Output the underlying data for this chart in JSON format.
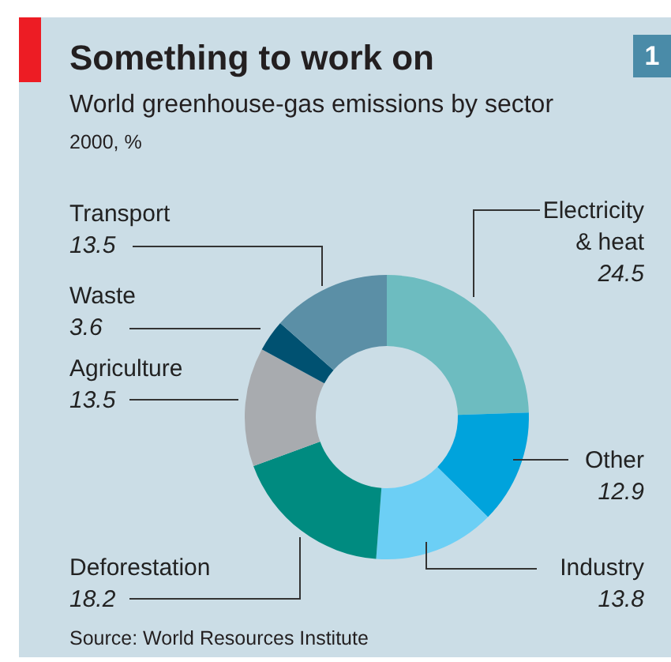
{
  "chart_data": {
    "type": "donut",
    "title": "Something to work on",
    "subtitle": "World greenhouse-gas emissions by sector\n2000, %",
    "categories": [
      "Electricity & heat",
      "Other",
      "Industry",
      "Deforestation",
      "Agriculture",
      "Waste",
      "Transport"
    ],
    "values": [
      24.5,
      12.9,
      13.8,
      18.2,
      13.5,
      3.6,
      13.5
    ],
    "colors": [
      "#6dbcc0",
      "#00a3dc",
      "#6ccff5",
      "#008b80",
      "#a8abaf",
      "#005171",
      "#5b8fa6"
    ],
    "data_labels": true,
    "annotations": [
      "Source: World Resources Institute",
      "1"
    ]
  }
}
